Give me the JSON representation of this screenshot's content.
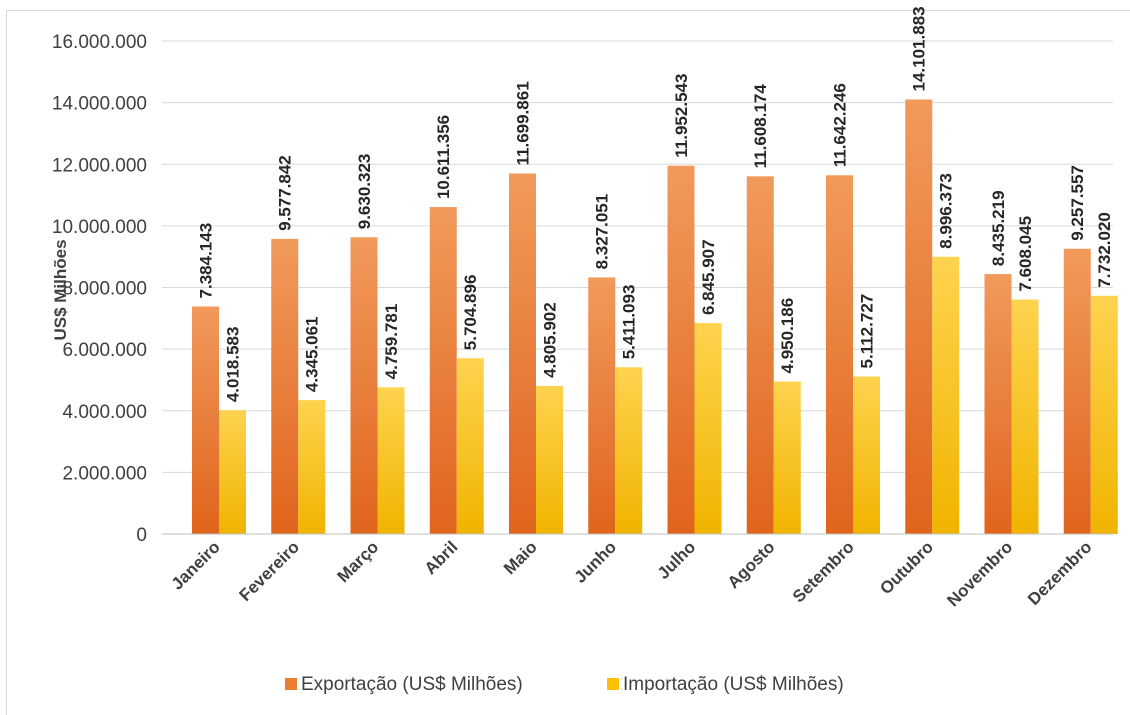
{
  "chart_data": {
    "type": "bar",
    "title": "",
    "xlabel": "",
    "ylabel": "US$ Milhões",
    "ylim": [
      0,
      16000000
    ],
    "ytick_step": 2000000,
    "ytick_labels": [
      "0",
      "2.000.000",
      "4.000.000",
      "6.000.000",
      "8.000.000",
      "10.000.000",
      "12.000.000",
      "14.000.000",
      "16.000.000"
    ],
    "grid": true,
    "legend_position": "bottom",
    "categories": [
      "Janeiro",
      "Fevereiro",
      "Março",
      "Abril",
      "Maio",
      "Junho",
      "Julho",
      "Agosto",
      "Setembro",
      "Outubro",
      "Novembro",
      "Dezembro"
    ],
    "series": [
      {
        "name": "Exportação (US$ Milhões)",
        "color": "#ed7d31",
        "values": [
          7384143,
          9577842,
          9630323,
          10611356,
          11699861,
          8327051,
          11952543,
          11608174,
          11642246,
          14101883,
          8435219,
          9257557
        ],
        "labels": [
          "7.384.143",
          "9.577.842",
          "9.630.323",
          "10.611.356",
          "11.699.861",
          "8.327.051",
          "11.952.543",
          "11.608.174",
          "11.642.246",
          "14.101.883",
          "8.435.219",
          "9.257.557"
        ]
      },
      {
        "name": "Importação (US$ Milhões)",
        "color": "#ffc000",
        "values": [
          4018583,
          4345061,
          4759781,
          5704896,
          4805902,
          5411093,
          6845907,
          4950186,
          5112727,
          8996373,
          7608045,
          7732020
        ],
        "labels": [
          "4.018.583",
          "4.345.061",
          "4.759.781",
          "5.704.896",
          "4.805.902",
          "5.411.093",
          "6.845.907",
          "4.950.186",
          "5.112.727",
          "8.996.373",
          "7.608.045",
          "7.732.020"
        ]
      }
    ]
  }
}
